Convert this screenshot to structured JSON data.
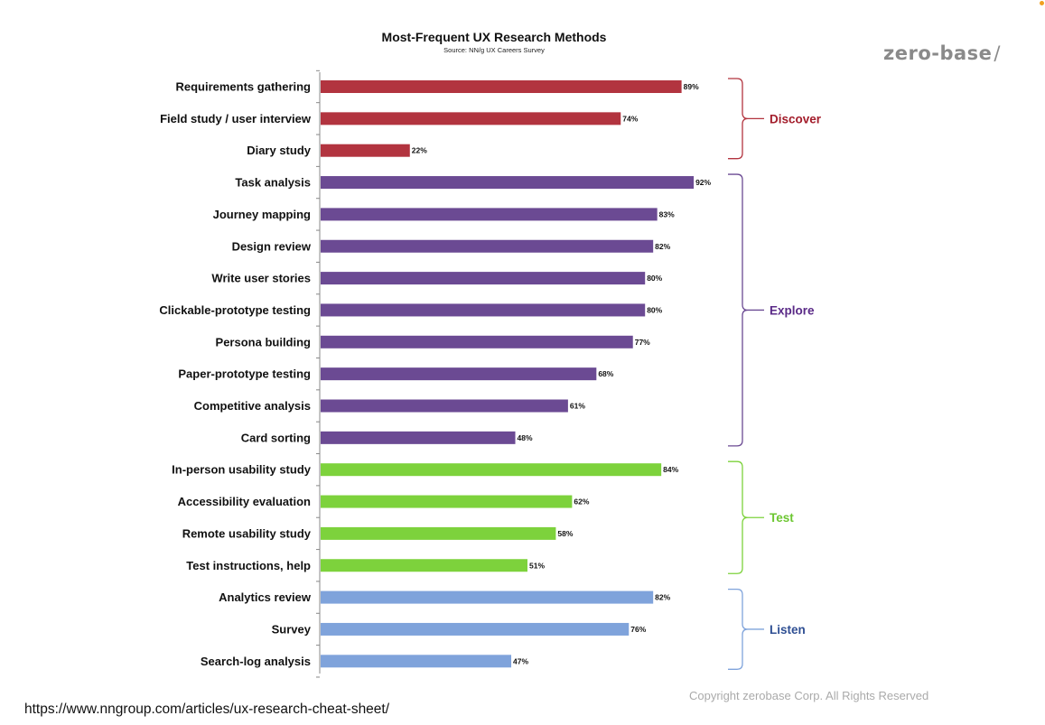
{
  "header": {
    "title": "Most-Frequent UX Research Methods",
    "subtitle": "Source: NN/g UX Careers Survey"
  },
  "brand": {
    "logo_text": "zero-base",
    "logo_suffix": "/"
  },
  "footer": {
    "url": "https://www.nngroup.com/articles/ux-research-cheat-sheet/",
    "copyright": "Copyright zerobase Corp. All Rights Reserved"
  },
  "colors": {
    "discover": "#b2343f",
    "explore": "#6b4a93",
    "test": "#7dd23c",
    "listen": "#7fa3db",
    "discover_label": "#a31d2b",
    "explore_label": "#5a2a87",
    "test_label": "#6cc631",
    "listen_label": "#2f4f93",
    "axis": "#888888",
    "corner_dot": "#f0a020"
  },
  "chart_data": {
    "type": "bar",
    "orientation": "horizontal",
    "title": "Most-Frequent UX Research Methods",
    "subtitle": "Source: NN/g UX Careers Survey",
    "xlim": [
      0,
      100
    ],
    "grid": false,
    "value_suffix": "%",
    "categories": [
      "Requirements gathering",
      "Field study / user interview",
      "Diary study",
      "Task analysis",
      "Journey mapping",
      "Design review",
      "Write user stories",
      "Clickable-prototype testing",
      "Persona building",
      "Paper-prototype testing",
      "Competitive analysis",
      "Card sorting",
      "In-person usability study",
      "Accessibility evaluation",
      "Remote usability study",
      "Test instructions, help",
      "Analytics review",
      "Survey",
      "Search-log analysis"
    ],
    "values": [
      89,
      74,
      22,
      92,
      83,
      82,
      80,
      80,
      77,
      68,
      61,
      48,
      84,
      62,
      58,
      51,
      82,
      76,
      47
    ],
    "value_labels": [
      "89%",
      "74%",
      "22%",
      "92%",
      "83%",
      "82%",
      "80%",
      "80%",
      "77%",
      "68%",
      "61%",
      "48%",
      "84%",
      "62%",
      "58%",
      "51%",
      "82%",
      "76%",
      "47%"
    ],
    "groups": [
      {
        "name": "Discover",
        "start": 0,
        "end": 2,
        "color_key": "discover"
      },
      {
        "name": "Explore",
        "start": 3,
        "end": 11,
        "color_key": "explore"
      },
      {
        "name": "Test",
        "start": 12,
        "end": 15,
        "color_key": "test"
      },
      {
        "name": "Listen",
        "start": 16,
        "end": 18,
        "color_key": "listen"
      }
    ]
  }
}
